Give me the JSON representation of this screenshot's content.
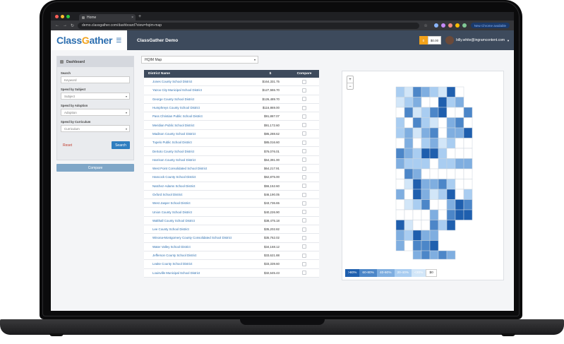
{
  "browser": {
    "tab_title": "Home",
    "url": "demo.classgather.com/dashboard?view=hqim-map",
    "chrome_notice": "New Chrome available"
  },
  "header": {
    "logo_prefix": "Class",
    "logo_g": "G",
    "logo_suffix": "ather",
    "title": "ClassGather Demo",
    "cart_count": "0",
    "cart_total": "$0.00",
    "user_email": "billy.white@ingramcontent.com"
  },
  "sidebar": {
    "heading": "Dashboard",
    "search_label": "Search",
    "search_placeholder": "Keyword",
    "subject_label": "Spend by Subject",
    "subject_value": "Subject",
    "adoption_label": "Spend by Adoption",
    "adoption_value": "Adoption",
    "curriculum_label": "Spend by Curriculum",
    "curriculum_value": "Curriculum",
    "reset": "Reset",
    "search_button": "Search",
    "compare_button": "Compare"
  },
  "view_selector": {
    "value": "HQIM Map"
  },
  "table": {
    "headers": {
      "name": "District Name",
      "amount": "$",
      "compare": "Compare"
    },
    "rows": [
      {
        "name": "Jones County School District",
        "amount": "$164,331.75"
      },
      {
        "name": "Yazoo City Municipal School District",
        "amount": "$127,555.70"
      },
      {
        "name": "George County School District",
        "amount": "$126,489.70"
      },
      {
        "name": "Humphreys County School District",
        "amount": "$116,869.00"
      },
      {
        "name": "Pass Christian Public School District",
        "amount": "$91,887.07"
      },
      {
        "name": "Meridian Public School District",
        "amount": "$91,172.60"
      },
      {
        "name": "Madison County School District",
        "amount": "$85,288.62"
      },
      {
        "name": "Tupelo Public School District",
        "amount": "$85,016.60"
      },
      {
        "name": "DeSoto County School District",
        "amount": "$76,076.01"
      },
      {
        "name": "Harrison County School District",
        "amount": "$64,391.00"
      },
      {
        "name": "West Point Consolidated School District",
        "amount": "$64,217.91"
      },
      {
        "name": "Hancock County School District",
        "amount": "$62,875.00"
      },
      {
        "name": "Natchez-Adams School District",
        "amount": "$55,152.60"
      },
      {
        "name": "Oxford School District",
        "amount": "$46,190.05"
      },
      {
        "name": "West Jasper School District",
        "amount": "$43,736.65"
      },
      {
        "name": "Union County School District",
        "amount": "$40,226.90"
      },
      {
        "name": "Walthall County School District",
        "amount": "$38,475.18"
      },
      {
        "name": "Lee County School District",
        "amount": "$35,202.82"
      },
      {
        "name": "Winona-Montgomery County Consolidated School District",
        "amount": "$35,762.02"
      },
      {
        "name": "Water Valley School District",
        "amount": "$34,168.12"
      },
      {
        "name": "Jefferson County School District",
        "amount": "$33,621.88"
      },
      {
        "name": "Leake County School District",
        "amount": "$33,339.60"
      },
      {
        "name": "Louisville Municipal School District",
        "amount": "$32,645.43"
      }
    ]
  },
  "map": {
    "zoom_in": "+",
    "zoom_out": "−",
    "legend": [
      {
        "label": ">80%",
        "color": "#1f5fae"
      },
      {
        "label": "60-80%",
        "color": "#4c86c8"
      },
      {
        "label": "40-60%",
        "color": "#7faee0"
      },
      {
        "label": "20-40%",
        "color": "#a9cdf1"
      },
      {
        "label": "<20%",
        "color": "#d2e6f8"
      },
      {
        "label": "$0",
        "color": "#ffffff"
      }
    ]
  }
}
